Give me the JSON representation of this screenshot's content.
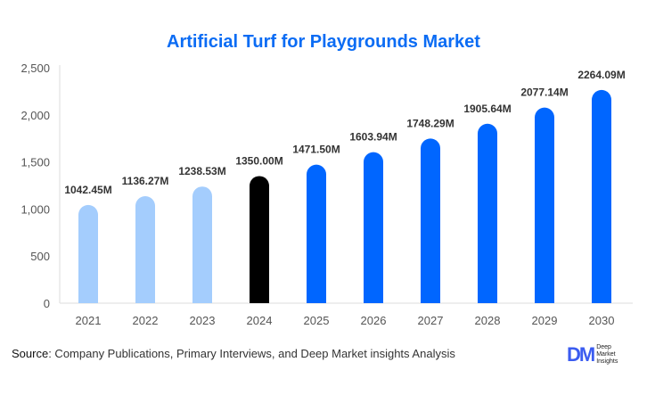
{
  "chart_data": {
    "type": "bar",
    "title": "Artificial Turf for Playgrounds Market",
    "categories": [
      "2021",
      "2022",
      "2023",
      "2024",
      "2025",
      "2026",
      "2027",
      "2028",
      "2029",
      "2030"
    ],
    "values": [
      1042.45,
      1136.27,
      1238.53,
      1350.0,
      1471.5,
      1603.94,
      1748.29,
      1905.64,
      2077.14,
      2264.09
    ],
    "data_labels": [
      "1042.45M",
      "1136.27M",
      "1238.53M",
      "1350.00M",
      "1471.50M",
      "1603.94M",
      "1748.29M",
      "1905.64M",
      "2077.14M",
      "2264.09M"
    ],
    "ylim": [
      0,
      2500
    ],
    "yticks": [
      0,
      500,
      1000,
      1500,
      2000,
      2500
    ],
    "ytick_labels": [
      "0",
      "500",
      "1,000",
      "1,500",
      "2,000",
      "2,500"
    ],
    "grid": false,
    "colors": {
      "historical": "#a4cdfd",
      "base_year": "#000000",
      "forecast": "#0066ff",
      "title": "#0b6cf4"
    }
  },
  "footer": {
    "source_label": "Source",
    "source_text": ": Company Publications, Primary Interviews, and Deep Market insights Analysis"
  },
  "logo": {
    "mark": "DM",
    "text": "Deep Market Insights"
  }
}
